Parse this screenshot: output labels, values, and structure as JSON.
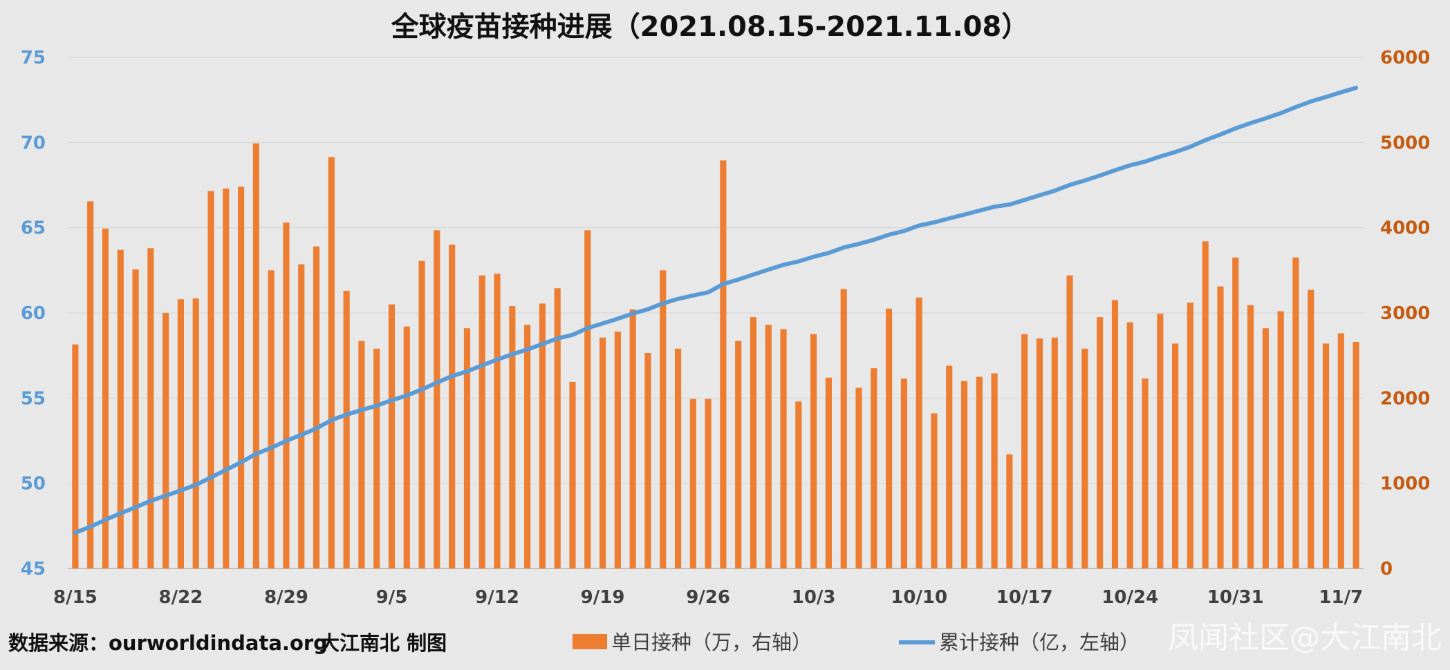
{
  "chart_data": {
    "type": "bar+line",
    "title": "全球疫苗接种进展（2021.08.15-2021.11.08）",
    "x_tick_labels": [
      "8/15",
      "8/22",
      "8/29",
      "9/5",
      "9/12",
      "9/19",
      "9/26",
      "10/3",
      "10/10",
      "10/17",
      "10/24",
      "10/31",
      "11/7"
    ],
    "y_left": {
      "ticks": [
        "45",
        "50",
        "55",
        "60",
        "65",
        "70",
        "75"
      ],
      "range": [
        45,
        75
      ],
      "color": "#5b9bd5"
    },
    "y_right": {
      "ticks": [
        "0",
        "1000",
        "2000",
        "3000",
        "4000",
        "5000",
        "6000"
      ],
      "range": [
        0,
        6000
      ],
      "color": "#c55a11"
    },
    "series": [
      {
        "name": "单日接种（万，右轴）",
        "type": "bar",
        "axis": "right",
        "color": "#ed7d31",
        "values": [
          2630,
          4310,
          3990,
          3740,
          3510,
          3760,
          3000,
          3160,
          3170,
          4430,
          4460,
          4480,
          4990,
          3500,
          4060,
          3570,
          3780,
          4830,
          3260,
          2670,
          2580,
          3100,
          2840,
          3610,
          3970,
          3800,
          2820,
          3440,
          3460,
          3080,
          2860,
          3110,
          3290,
          2190,
          3970,
          2710,
          2780,
          3040,
          2530,
          3500,
          2580,
          1990,
          1990,
          4790,
          2670,
          2950,
          2860,
          2810,
          1960,
          2750,
          2240,
          3280,
          2120,
          2350,
          3050,
          2230,
          3180,
          1820,
          2380,
          2200,
          2250,
          2290,
          1340,
          2750,
          2700,
          2710,
          3440,
          2580,
          2950,
          3150,
          2890,
          2230,
          2990,
          2640,
          3120,
          3840,
          3310,
          3650,
          3090,
          2820,
          3020,
          3650,
          3270,
          2640,
          2760,
          2660
        ]
      },
      {
        "name": "累计接种（亿，左轴）",
        "type": "line",
        "axis": "left",
        "color": "#5b9bd5",
        "values": [
          47.1,
          47.45,
          47.86,
          48.24,
          48.59,
          48.97,
          49.27,
          49.58,
          49.9,
          50.34,
          50.79,
          51.23,
          51.73,
          52.08,
          52.49,
          52.84,
          53.22,
          53.71,
          54.03,
          54.3,
          54.56,
          54.87,
          55.15,
          55.51,
          55.91,
          56.29,
          56.57,
          56.92,
          57.26,
          57.57,
          57.85,
          58.17,
          58.5,
          58.71,
          59.11,
          59.38,
          59.66,
          59.96,
          60.21,
          60.56,
          60.82,
          61.02,
          61.21,
          61.69,
          61.96,
          62.25,
          62.54,
          62.82,
          63.02,
          63.29,
          63.52,
          63.84,
          64.05,
          64.29,
          64.59,
          64.81,
          65.13,
          65.31,
          65.55,
          65.77,
          66.0,
          66.23,
          66.36,
          66.63,
          66.9,
          67.17,
          67.51,
          67.77,
          68.06,
          68.37,
          68.66,
          68.88,
          69.18,
          69.44,
          69.75,
          70.14,
          70.47,
          70.83,
          71.14,
          71.42,
          71.72,
          72.08,
          72.41,
          72.67,
          72.95,
          73.21
        ]
      }
    ],
    "footer": {
      "source": "数据来源：ourworldindata.org",
      "author": "大江南北 制图"
    }
  },
  "watermark": "凤闻社区@大江南北"
}
